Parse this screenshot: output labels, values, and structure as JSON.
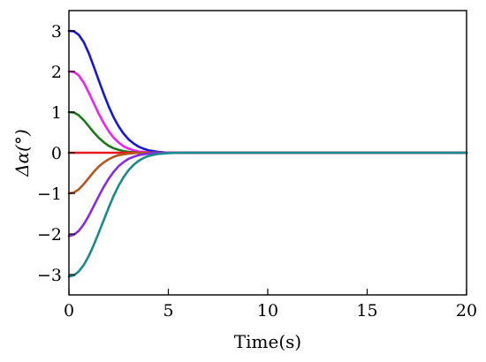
{
  "chart_data": {
    "type": "line",
    "title": "",
    "xlabel": "Time(s)",
    "ylabel": "Δα(°)",
    "xlim": [
      0,
      20
    ],
    "ylim": [
      -3.5,
      3.5
    ],
    "xticks": [
      0,
      5,
      10,
      15,
      20
    ],
    "xtick_labels": [
      "0",
      "5",
      "10",
      "15",
      "20"
    ],
    "yticks": [
      -3,
      -2,
      -1,
      0,
      1,
      2,
      3
    ],
    "ytick_labels": [
      "−3",
      "−2",
      "−1",
      "0",
      "1",
      "2",
      "3"
    ],
    "grid": false,
    "legend": "none",
    "x": [
      0,
      0.25,
      0.5,
      0.75,
      1,
      1.25,
      1.5,
      1.75,
      2,
      2.25,
      2.5,
      2.75,
      3,
      3.25,
      3.5,
      3.75,
      4,
      4.25,
      4.5,
      4.75,
      5,
      5.5,
      6,
      7,
      8,
      10,
      12,
      14,
      16,
      18,
      20
    ],
    "series": [
      {
        "color": "#1515e0",
        "values": [
          3.0,
          2.99,
          2.9,
          2.72,
          2.45,
          2.12,
          1.78,
          1.45,
          1.14,
          0.87,
          0.65,
          0.47,
          0.33,
          0.23,
          0.15,
          0.1,
          0.06,
          0.04,
          0.02,
          0.01,
          0.0,
          0,
          0,
          0,
          0,
          0,
          0,
          0,
          0,
          0,
          0
        ]
      },
      {
        "color": "#f020f0",
        "values": [
          2.0,
          1.99,
          1.9,
          1.72,
          1.48,
          1.22,
          0.96,
          0.73,
          0.53,
          0.37,
          0.25,
          0.16,
          0.1,
          0.06,
          0.03,
          0.02,
          0.01,
          0.0,
          0,
          0,
          0,
          0,
          0,
          0,
          0,
          0,
          0,
          0,
          0,
          0,
          0
        ]
      },
      {
        "color": "#1a7a1a",
        "values": [
          1.0,
          0.99,
          0.92,
          0.8,
          0.65,
          0.5,
          0.37,
          0.26,
          0.17,
          0.11,
          0.07,
          0.04,
          0.02,
          0.01,
          0.0,
          0,
          0,
          0,
          0,
          0,
          0,
          0,
          0,
          0,
          0,
          0,
          0,
          0,
          0,
          0,
          0
        ]
      },
      {
        "color": "#e8191a",
        "values": [
          0,
          0,
          0,
          0,
          0,
          0,
          0,
          0,
          0,
          0,
          0,
          0,
          0,
          0,
          0,
          0,
          0,
          0,
          0,
          0,
          0,
          0,
          0,
          0,
          0,
          0,
          0,
          0,
          0,
          0,
          0
        ]
      },
      {
        "color": "#b5561c",
        "values": [
          -1.0,
          -0.98,
          -0.9,
          -0.77,
          -0.62,
          -0.47,
          -0.34,
          -0.24,
          -0.16,
          -0.1,
          -0.06,
          -0.04,
          -0.02,
          -0.01,
          0.0,
          0,
          0,
          0,
          0,
          0,
          0,
          0,
          0,
          0,
          0,
          0,
          0,
          0,
          0,
          0,
          0
        ]
      },
      {
        "color": "#8a2be2",
        "values": [
          -2.05,
          -2.02,
          -1.92,
          -1.76,
          -1.55,
          -1.31,
          -1.07,
          -0.84,
          -0.64,
          -0.47,
          -0.33,
          -0.23,
          -0.15,
          -0.1,
          -0.06,
          -0.04,
          -0.02,
          -0.01,
          0.0,
          0,
          0,
          0,
          0,
          0,
          0,
          0,
          0,
          0,
          0,
          0,
          0
        ]
      },
      {
        "color": "#1a8a8a",
        "values": [
          -3.05,
          -3.02,
          -2.92,
          -2.76,
          -2.54,
          -2.27,
          -1.97,
          -1.66,
          -1.35,
          -1.06,
          -0.81,
          -0.6,
          -0.43,
          -0.3,
          -0.2,
          -0.13,
          -0.08,
          -0.05,
          -0.03,
          -0.02,
          -0.01,
          0.0,
          0,
          0,
          0,
          0,
          0,
          0,
          0,
          0,
          0
        ]
      }
    ]
  }
}
